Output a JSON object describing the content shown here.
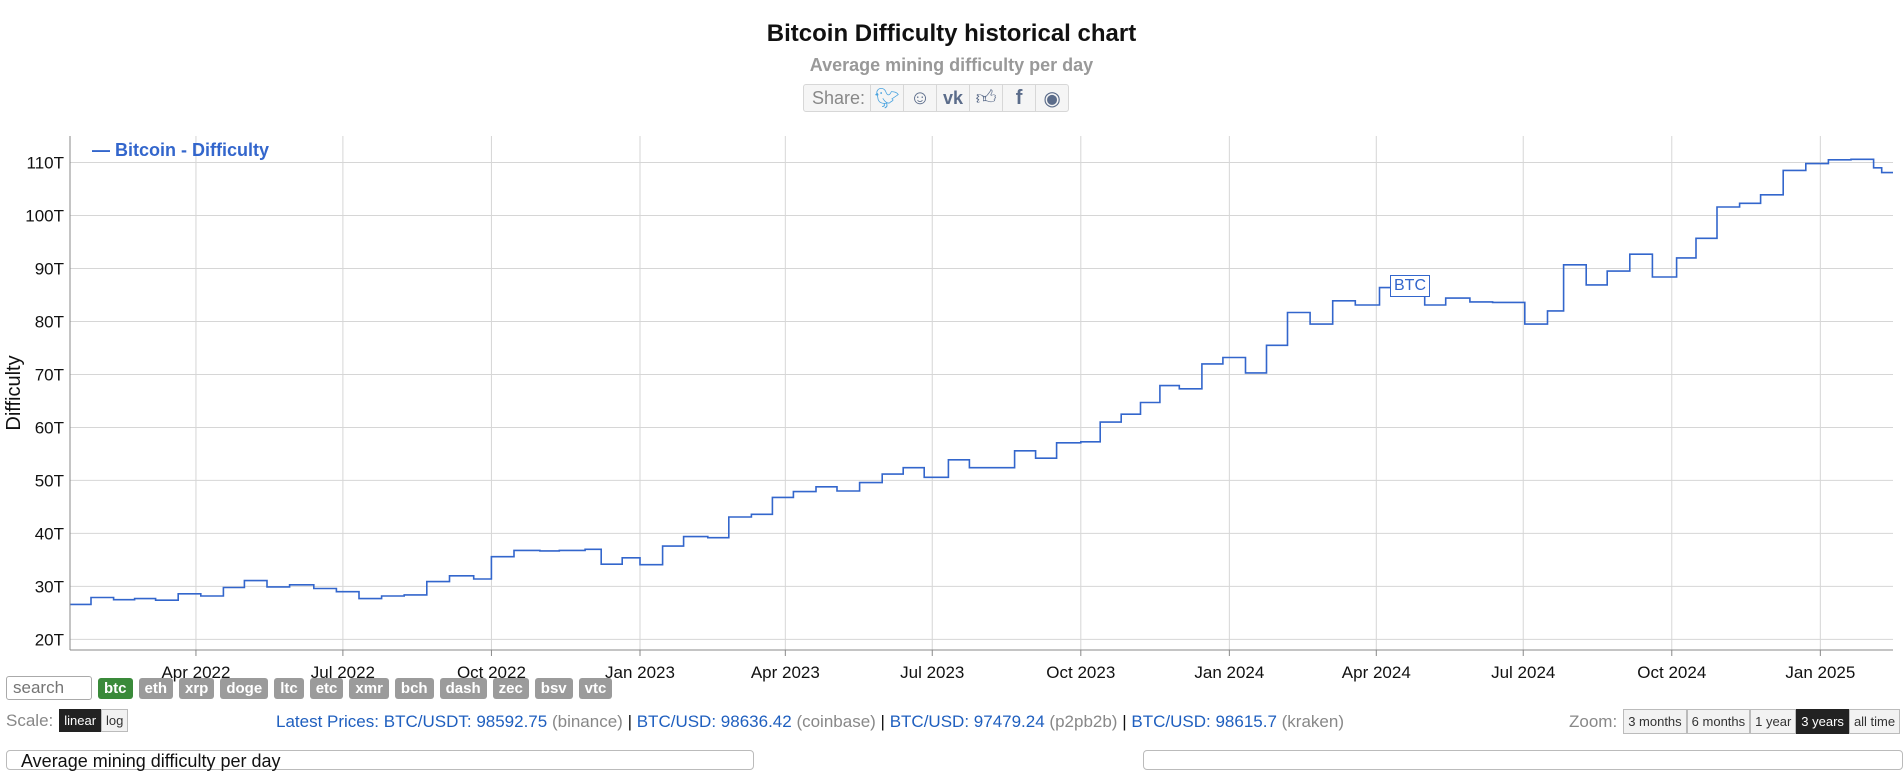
{
  "page": {
    "title": "Bitcoin Difficulty historical chart",
    "subtitle": "Average mining difficulty per day",
    "share_label": "Share:",
    "share_icons": [
      "twitter-icon",
      "reddit-icon",
      "vk-icon",
      "like-icon",
      "facebook-icon",
      "weibo-icon"
    ]
  },
  "chart_data": {
    "type": "line",
    "ylabel": "Difficulty",
    "legend": "— Bitcoin - Difficulty",
    "legend_position": "top-left",
    "marker_label": "BTC",
    "marker_date": "2024-04-20",
    "line_color": "#3366cc",
    "grid": true,
    "x_range": [
      "2022-01-13",
      "2025-02-15"
    ],
    "ylim": [
      18,
      115
    ],
    "y_ticks": [
      20,
      30,
      40,
      50,
      60,
      70,
      80,
      90,
      100,
      110
    ],
    "y_tick_labels": [
      "20T",
      "30T",
      "40T",
      "50T",
      "60T",
      "70T",
      "80T",
      "90T",
      "100T",
      "110T"
    ],
    "x_ticks": [
      "2022-04-01",
      "2022-07-01",
      "2022-10-01",
      "2023-01-01",
      "2023-04-01",
      "2023-07-01",
      "2023-10-01",
      "2024-01-01",
      "2024-04-01",
      "2024-07-01",
      "2024-10-01",
      "2025-01-01"
    ],
    "x_tick_labels": [
      "Apr 2022",
      "Jul 2022",
      "Oct 2022",
      "Jan 2023",
      "Apr 2023",
      "Jul 2023",
      "Oct 2023",
      "Jan 2024",
      "Apr 2024",
      "Jul 2024",
      "Oct 2024",
      "Jan 2025"
    ],
    "series": [
      {
        "name": "Bitcoin - Difficulty",
        "points": [
          [
            "2022-01-13",
            26.6
          ],
          [
            "2022-01-26",
            27.9
          ],
          [
            "2022-02-09",
            27.5
          ],
          [
            "2022-02-22",
            27.7
          ],
          [
            "2022-03-07",
            27.4
          ],
          [
            "2022-03-21",
            28.6
          ],
          [
            "2022-04-04",
            28.2
          ],
          [
            "2022-04-18",
            29.8
          ],
          [
            "2022-05-01",
            31.1
          ],
          [
            "2022-05-15",
            29.9
          ],
          [
            "2022-05-29",
            30.3
          ],
          [
            "2022-06-13",
            29.6
          ],
          [
            "2022-06-27",
            29.0
          ],
          [
            "2022-07-11",
            27.7
          ],
          [
            "2022-07-25",
            28.2
          ],
          [
            "2022-08-08",
            28.4
          ],
          [
            "2022-08-22",
            30.9
          ],
          [
            "2022-09-05",
            32.0
          ],
          [
            "2022-09-20",
            31.4
          ],
          [
            "2022-10-01",
            35.6
          ],
          [
            "2022-10-15",
            36.8
          ],
          [
            "2022-10-31",
            36.7
          ],
          [
            "2022-11-12",
            36.8
          ],
          [
            "2022-11-28",
            37.0
          ],
          [
            "2022-12-08",
            34.2
          ],
          [
            "2022-12-21",
            35.4
          ],
          [
            "2023-01-01",
            34.1
          ],
          [
            "2023-01-15",
            37.6
          ],
          [
            "2023-01-28",
            39.4
          ],
          [
            "2023-02-12",
            39.2
          ],
          [
            "2023-02-25",
            43.1
          ],
          [
            "2023-03-11",
            43.6
          ],
          [
            "2023-03-24",
            46.8
          ],
          [
            "2023-04-06",
            47.9
          ],
          [
            "2023-04-20",
            48.8
          ],
          [
            "2023-05-03",
            48.0
          ],
          [
            "2023-05-17",
            49.6
          ],
          [
            "2023-05-31",
            51.2
          ],
          [
            "2023-06-13",
            52.4
          ],
          [
            "2023-06-26",
            50.6
          ],
          [
            "2023-07-11",
            53.9
          ],
          [
            "2023-07-24",
            52.4
          ],
          [
            "2023-08-21",
            55.6
          ],
          [
            "2023-09-03",
            54.2
          ],
          [
            "2023-09-16",
            57.1
          ],
          [
            "2023-10-01",
            57.3
          ],
          [
            "2023-10-13",
            61.0
          ],
          [
            "2023-10-26",
            62.5
          ],
          [
            "2023-11-07",
            64.7
          ],
          [
            "2023-11-19",
            67.9
          ],
          [
            "2023-12-01",
            67.3
          ],
          [
            "2023-12-15",
            72.0
          ],
          [
            "2023-12-28",
            73.2
          ],
          [
            "2024-01-11",
            70.3
          ],
          [
            "2024-01-24",
            75.5
          ],
          [
            "2024-02-06",
            81.7
          ],
          [
            "2024-02-20",
            79.5
          ],
          [
            "2024-03-05",
            83.9
          ],
          [
            "2024-03-19",
            83.1
          ],
          [
            "2024-04-03",
            86.4
          ],
          [
            "2024-04-15",
            88.1
          ],
          [
            "2024-05-01",
            83.1
          ],
          [
            "2024-05-14",
            84.4
          ],
          [
            "2024-05-29",
            83.7
          ],
          [
            "2024-06-12",
            83.6
          ],
          [
            "2024-07-02",
            79.5
          ],
          [
            "2024-07-16",
            82.0
          ],
          [
            "2024-07-26",
            90.7
          ],
          [
            "2024-08-09",
            86.9
          ],
          [
            "2024-08-22",
            89.5
          ],
          [
            "2024-09-05",
            92.7
          ],
          [
            "2024-09-19",
            88.4
          ],
          [
            "2024-10-04",
            92.0
          ],
          [
            "2024-10-16",
            95.7
          ],
          [
            "2024-10-29",
            101.6
          ],
          [
            "2024-11-12",
            102.3
          ],
          [
            "2024-11-25",
            103.9
          ],
          [
            "2024-12-09",
            108.5
          ],
          [
            "2024-12-23",
            109.8
          ],
          [
            "2025-01-06",
            110.5
          ],
          [
            "2025-01-20",
            110.6
          ],
          [
            "2025-02-03",
            109.0
          ],
          [
            "2025-02-08",
            108.1
          ],
          [
            "2025-02-15",
            108.1
          ]
        ]
      }
    ]
  },
  "controls": {
    "search_placeholder": "search",
    "coins": [
      "btc",
      "eth",
      "xrp",
      "doge",
      "ltc",
      "etc",
      "xmr",
      "bch",
      "dash",
      "zec",
      "bsv",
      "vtc"
    ],
    "active_coin": "btc",
    "scale_label": "Scale:",
    "scale_linear": "linear",
    "scale_log": "log",
    "zoom_label": "Zoom:",
    "zoom_options": [
      "3 months",
      "6 months",
      "1 year",
      "3 years",
      "all time"
    ],
    "zoom_active": "3 years"
  },
  "prices": {
    "label": "Latest Prices:",
    "items": [
      {
        "pair": "BTC/USDT:",
        "value": "98592.75",
        "exchange": "(binance)"
      },
      {
        "pair": "BTC/USD:",
        "value": "98636.42",
        "exchange": "(coinbase)"
      },
      {
        "pair": "BTC/USD:",
        "value": "97479.24",
        "exchange": "(p2pb2b)"
      },
      {
        "pair": "BTC/USD:",
        "value": "98615.7",
        "exchange": "(kraken)"
      }
    ]
  },
  "bottom": {
    "left_box_text": "Average mining difficulty per day"
  }
}
